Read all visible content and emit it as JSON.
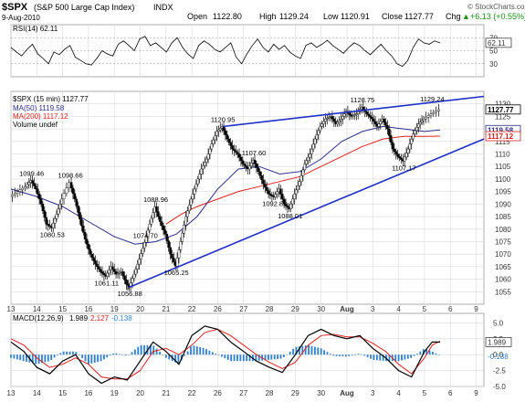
{
  "header": {
    "symbol": "$SPX",
    "name": "(S&P 500 Large Cap Index)",
    "exchange": "INDX",
    "date": "9-Aug-2010",
    "open_label": "Open",
    "open": "1122.80",
    "high_label": "High",
    "high": "1129.24",
    "low_label": "Low",
    "low": "1120.91",
    "close_label": "Close",
    "close": "1127.77",
    "chg_label": "Chg",
    "chg": "+6.13 (+0.55%)",
    "chg_arrow": "▲",
    "watermark": "© StockCharts.com"
  },
  "chart_data": [
    {
      "type": "line",
      "panel": "rsi",
      "legend": "RSI(14) 62.11",
      "ticks": [
        "30",
        "50",
        "70"
      ],
      "ylim": [
        10,
        90
      ],
      "last_value": "62.11",
      "values": [
        55,
        48,
        42,
        52,
        60,
        45,
        38,
        30,
        48,
        44,
        52,
        58,
        40,
        35,
        30,
        28,
        38,
        50,
        45,
        42,
        60,
        65,
        58,
        50,
        68,
        72,
        58,
        62,
        55,
        48,
        62,
        70,
        55,
        45,
        38,
        58,
        65,
        60,
        52,
        48,
        55,
        62,
        40,
        30,
        45,
        58,
        68,
        55,
        48,
        60,
        52,
        58,
        48,
        42,
        38,
        58,
        62,
        55,
        60,
        66,
        58,
        52,
        46,
        55,
        62,
        58,
        50,
        44,
        52,
        60,
        50,
        42,
        30,
        26,
        35,
        55,
        68,
        62,
        60,
        65,
        62
      ]
    },
    {
      "type": "candlestick",
      "panel": "price",
      "legend": "$SPX (15 min) 1127.77",
      "ylim": [
        1050,
        1135
      ],
      "yticks": [
        1055,
        1060,
        1065,
        1070,
        1075,
        1080,
        1085,
        1090,
        1095,
        1100,
        1105,
        1110,
        1115,
        1120,
        1125,
        1130
      ],
      "x_labels": [
        "13",
        "14",
        "15",
        "16",
        "19",
        "20",
        "21",
        "22",
        "26",
        "27",
        "28",
        "29",
        "30",
        "Aug",
        "3",
        "4",
        "5",
        "6",
        "9"
      ],
      "close_path": [
        [
          0,
          1093
        ],
        [
          0.3,
          1095
        ],
        [
          0.6,
          1097
        ],
        [
          0.8,
          1099.46
        ],
        [
          1.0,
          1096
        ],
        [
          1.2,
          1090
        ],
        [
          1.4,
          1082
        ],
        [
          1.6,
          1080.53
        ],
        [
          1.8,
          1086
        ],
        [
          2.0,
          1092
        ],
        [
          2.3,
          1098.66
        ],
        [
          2.5,
          1092
        ],
        [
          2.7,
          1084
        ],
        [
          2.9,
          1076
        ],
        [
          3.1,
          1070
        ],
        [
          3.3,
          1066
        ],
        [
          3.5,
          1063
        ],
        [
          3.7,
          1061.11
        ],
        [
          3.9,
          1065
        ],
        [
          4.1,
          1062
        ],
        [
          4.3,
          1063
        ],
        [
          4.5,
          1058
        ],
        [
          4.6,
          1056.88
        ],
        [
          4.8,
          1062
        ],
        [
          5.0,
          1068
        ],
        [
          5.2,
          1074.7
        ],
        [
          5.4,
          1082
        ],
        [
          5.6,
          1088.96
        ],
        [
          5.8,
          1083
        ],
        [
          6.0,
          1078
        ],
        [
          6.2,
          1070
        ],
        [
          6.4,
          1065.25
        ],
        [
          6.6,
          1075
        ],
        [
          6.8,
          1085
        ],
        [
          7.0,
          1092
        ],
        [
          7.2,
          1098
        ],
        [
          7.4,
          1104
        ],
        [
          7.6,
          1108
        ],
        [
          7.8,
          1114
        ],
        [
          8.0,
          1119
        ],
        [
          8.2,
          1120.95
        ],
        [
          8.4,
          1116
        ],
        [
          8.6,
          1112
        ],
        [
          8.8,
          1110
        ],
        [
          9.0,
          1106
        ],
        [
          9.2,
          1104
        ],
        [
          9.4,
          1107.6
        ],
        [
          9.6,
          1103
        ],
        [
          9.8,
          1098
        ],
        [
          10.0,
          1094
        ],
        [
          10.2,
          1092.82
        ],
        [
          10.4,
          1096
        ],
        [
          10.6,
          1090
        ],
        [
          10.8,
          1088.01
        ],
        [
          11.0,
          1094
        ],
        [
          11.2,
          1099
        ],
        [
          11.4,
          1106
        ],
        [
          11.6,
          1110
        ],
        [
          11.8,
          1116
        ],
        [
          12.0,
          1121
        ],
        [
          12.2,
          1124
        ],
        [
          12.4,
          1125
        ],
        [
          12.6,
          1122
        ],
        [
          12.8,
          1124
        ],
        [
          13.0,
          1127
        ],
        [
          13.2,
          1125
        ],
        [
          13.4,
          1126
        ],
        [
          13.6,
          1128.75
        ],
        [
          13.8,
          1126
        ],
        [
          14.0,
          1124
        ],
        [
          14.2,
          1121
        ],
        [
          14.4,
          1124
        ],
        [
          14.6,
          1120
        ],
        [
          14.8,
          1112
        ],
        [
          15.0,
          1109
        ],
        [
          15.2,
          1107.17
        ],
        [
          15.4,
          1112
        ],
        [
          15.6,
          1118
        ],
        [
          15.8,
          1122
        ],
        [
          16.0,
          1124
        ],
        [
          16.3,
          1126
        ],
        [
          16.6,
          1127.77
        ]
      ],
      "ma50": [
        [
          0,
          1096
        ],
        [
          1,
          1093
        ],
        [
          2,
          1089
        ],
        [
          3,
          1083
        ],
        [
          4,
          1077
        ],
        [
          4.8,
          1074
        ],
        [
          5.6,
          1075
        ],
        [
          6.4,
          1078
        ],
        [
          7.2,
          1085
        ],
        [
          8.0,
          1096
        ],
        [
          8.8,
          1104
        ],
        [
          9.6,
          1105
        ],
        [
          10.4,
          1102
        ],
        [
          11.2,
          1103
        ],
        [
          12.0,
          1108
        ],
        [
          12.8,
          1115
        ],
        [
          13.6,
          1119
        ],
        [
          14.4,
          1121
        ],
        [
          15.2,
          1120
        ],
        [
          16.0,
          1119
        ],
        [
          16.6,
          1119.58
        ]
      ],
      "ma200": [
        [
          6.0,
          1082
        ],
        [
          6.6,
          1086
        ],
        [
          7.2,
          1089
        ],
        [
          8.0,
          1092
        ],
        [
          8.8,
          1095
        ],
        [
          9.6,
          1097
        ],
        [
          10.4,
          1099
        ],
        [
          11.2,
          1101
        ],
        [
          12.0,
          1105
        ],
        [
          12.8,
          1109
        ],
        [
          13.6,
          1113
        ],
        [
          14.4,
          1116
        ],
        [
          15.2,
          1117
        ],
        [
          16.0,
          1117
        ],
        [
          16.6,
          1117.12
        ]
      ],
      "trend_upper": [
        [
          8.2,
          1120.95
        ],
        [
          18.3,
          1133
        ]
      ],
      "trend_lower": [
        [
          4.6,
          1056.88
        ],
        [
          18.3,
          1116
        ]
      ],
      "annotations": [
        {
          "label": "1099.46",
          "x": 0.8,
          "y": 1099.46,
          "pos": "above"
        },
        {
          "label": "1098.66",
          "x": 2.3,
          "y": 1098.66,
          "pos": "above"
        },
        {
          "label": "1080.53",
          "x": 1.6,
          "y": 1080.53,
          "pos": "below"
        },
        {
          "label": "1074.70",
          "x": 5.2,
          "y": 1074.7,
          "pos": "above"
        },
        {
          "label": "1061.11",
          "x": 3.7,
          "y": 1061.11,
          "pos": "below"
        },
        {
          "label": "1056.88",
          "x": 4.6,
          "y": 1056.88,
          "pos": "below"
        },
        {
          "label": "1088.96",
          "x": 5.6,
          "y": 1088.96,
          "pos": "above"
        },
        {
          "label": "1065.25",
          "x": 6.4,
          "y": 1065.25,
          "pos": "below"
        },
        {
          "label": "1120.95",
          "x": 8.2,
          "y": 1120.95,
          "pos": "above"
        },
        {
          "label": "1107.60",
          "x": 9.4,
          "y": 1107.6,
          "pos": "above"
        },
        {
          "label": "1092.82",
          "x": 10.2,
          "y": 1092.82,
          "pos": "below"
        },
        {
          "label": "1088.01",
          "x": 10.8,
          "y": 1088.01,
          "pos": "below"
        },
        {
          "label": "1128.75",
          "x": 13.6,
          "y": 1128.75,
          "pos": "above"
        },
        {
          "label": "1107.17",
          "x": 15.2,
          "y": 1107.17,
          "pos": "below"
        },
        {
          "label": "1129.24",
          "x": 16.3,
          "y": 1129.24,
          "pos": "above"
        }
      ]
    },
    {
      "type": "line",
      "panel": "macd",
      "legend_name": "MACD(12,26,9)",
      "legend_macd": "1.989",
      "legend_signal": "2.127",
      "legend_hist": "-0.138",
      "ylim": [
        -5,
        6.5
      ],
      "yticks": [
        "-5.0",
        "-2.5",
        "0.0",
        "2.5",
        "5.0"
      ],
      "x_labels": [
        "13",
        "14",
        "15",
        "16",
        "19",
        "20",
        "21",
        "22",
        "26",
        "27",
        "28",
        "29",
        "30",
        "Aug",
        "3",
        "4",
        "5",
        "6",
        "9"
      ],
      "macd": [
        [
          0,
          2
        ],
        [
          0.5,
          0.5
        ],
        [
          1,
          -2
        ],
        [
          1.5,
          -3
        ],
        [
          2,
          -1
        ],
        [
          2.5,
          0
        ],
        [
          3,
          -3
        ],
        [
          3.5,
          -4.5
        ],
        [
          4,
          -3.5
        ],
        [
          4.5,
          -4
        ],
        [
          5,
          -1
        ],
        [
          5.5,
          2
        ],
        [
          6,
          0.5
        ],
        [
          6.5,
          -1.5
        ],
        [
          7,
          3
        ],
        [
          7.5,
          4.5
        ],
        [
          8,
          4
        ],
        [
          8.5,
          2
        ],
        [
          9,
          0.5
        ],
        [
          9.5,
          -1
        ],
        [
          10,
          -2
        ],
        [
          10.5,
          -2.8
        ],
        [
          11,
          0
        ],
        [
          11.5,
          3
        ],
        [
          12,
          4
        ],
        [
          12.5,
          3
        ],
        [
          13,
          2.5
        ],
        [
          13.5,
          3
        ],
        [
          14,
          1
        ],
        [
          14.5,
          -0.5
        ],
        [
          15,
          -2.5
        ],
        [
          15.5,
          -3.5
        ],
        [
          16,
          0.5
        ],
        [
          16.3,
          2
        ],
        [
          16.6,
          1.989
        ]
      ],
      "signal": [
        [
          0,
          2.5
        ],
        [
          0.5,
          1.5
        ],
        [
          1,
          -0.5
        ],
        [
          1.5,
          -2
        ],
        [
          2,
          -1.5
        ],
        [
          2.5,
          -0.5
        ],
        [
          3,
          -1.5
        ],
        [
          3.5,
          -3.5
        ],
        [
          4,
          -3.8
        ],
        [
          4.5,
          -3.8
        ],
        [
          5,
          -2.5
        ],
        [
          5.5,
          0.5
        ],
        [
          6,
          1
        ],
        [
          6.5,
          0
        ],
        [
          7,
          1.5
        ],
        [
          7.5,
          3.5
        ],
        [
          8,
          4
        ],
        [
          8.5,
          3
        ],
        [
          9,
          1.5
        ],
        [
          9.5,
          0
        ],
        [
          10,
          -1.2
        ],
        [
          10.5,
          -2.2
        ],
        [
          11,
          -1.2
        ],
        [
          11.5,
          1.5
        ],
        [
          12,
          3
        ],
        [
          12.5,
          3.2
        ],
        [
          13,
          2.8
        ],
        [
          13.5,
          2.8
        ],
        [
          14,
          1.8
        ],
        [
          14.5,
          0.5
        ],
        [
          15,
          -1.5
        ],
        [
          15.5,
          -3
        ],
        [
          16,
          -0.5
        ],
        [
          16.3,
          1.5
        ],
        [
          16.6,
          2.127
        ]
      ],
      "last_values": [
        "1.989",
        "-0.138"
      ]
    }
  ],
  "legend": {
    "ma50": "MA(50) 1119.58",
    "ma200": "MA(200) 1117.12",
    "volume": "Volume undef"
  },
  "price_labels": {
    "last": "1127.77",
    "ma50": "1119.58",
    "ma200": "1117.12"
  },
  "colors": {
    "price": "#000000",
    "ma50": "#2b2b8c",
    "ma200": "#e02020",
    "trend": "#1f2fc8",
    "macd": "#000000",
    "signal": "#e02020",
    "hist": "#2f7fd0",
    "rsi": "#000000"
  }
}
